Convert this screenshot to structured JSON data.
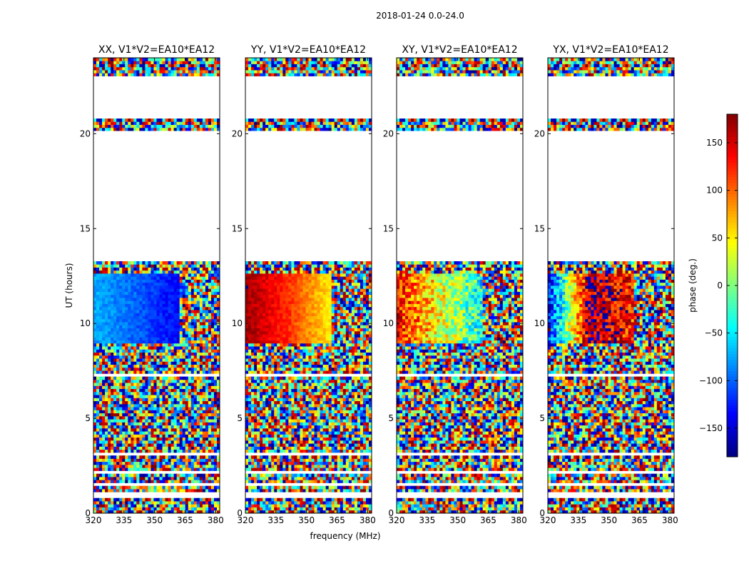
{
  "figure": {
    "title": "2018-01-24 0.0-24.0"
  },
  "chart_data": {
    "type": "heatmap",
    "colormap": "jet",
    "x_ticks": [
      "320",
      "335",
      "350",
      "365",
      "380"
    ],
    "y_ticks": [
      "0",
      "5",
      "10",
      "15",
      "20"
    ],
    "xlim": [
      320,
      382
    ],
    "ylim": [
      0,
      24
    ],
    "xlabel": "frequency (MHz)",
    "ylabel": "UT (hours)",
    "colorbar": {
      "label": "phase (deg.)",
      "range": [
        -180,
        180
      ],
      "ticks": [
        "150",
        "100",
        "50",
        "0",
        "−50",
        "−100",
        "−150"
      ],
      "tick_values": [
        150,
        100,
        50,
        0,
        -50,
        -100,
        -150
      ]
    },
    "empty_ut_ranges": [
      [
        0.8,
        1.1
      ],
      [
        1.45,
        1.6
      ],
      [
        2.1,
        2.3
      ],
      [
        3.0,
        3.15
      ],
      [
        7.25,
        7.4
      ],
      [
        13.3,
        20.2
      ],
      [
        20.75,
        23.0
      ]
    ],
    "panels": [
      {
        "title": "XX, V1*V2=EA10*EA12",
        "smooth_phase": [
          -75,
          -100,
          -135
        ],
        "smooth_trend": "linear"
      },
      {
        "title": "YY, V1*V2=EA10*EA12",
        "smooth_phase": [
          170,
          120,
          50
        ],
        "smooth_trend": "linear"
      },
      {
        "title": "XY, V1*V2=EA10*EA12",
        "smooth_phase": [
          130,
          40,
          -40
        ],
        "smooth_trend": "noisy"
      },
      {
        "title": "YX, V1*V2=EA10*EA12",
        "smooth_phase": [
          -140,
          170,
          120
        ],
        "smooth_trend": "noisy"
      }
    ]
  }
}
